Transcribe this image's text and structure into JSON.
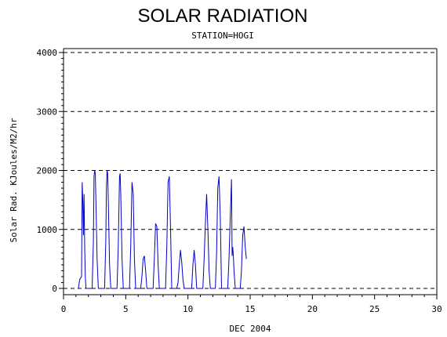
{
  "chart_data": {
    "type": "line",
    "title": "SOLAR RADIATION",
    "subtitle": "STATION=HOGI",
    "xlabel": "DEC 2004",
    "ylabel": "Solar Rad. KJoules/M2/hr",
    "xlim": [
      0,
      30
    ],
    "ylim": [
      0,
      4000
    ],
    "xticks": [
      0,
      5,
      10,
      15,
      20,
      25,
      30
    ],
    "yticks": [
      0,
      1000,
      2000,
      3000,
      4000
    ],
    "grid": "horizontal dashed",
    "series": [
      {
        "color": "#0000cc",
        "x": [
          1.2,
          1.3,
          1.45,
          1.5,
          1.55,
          1.6,
          1.65,
          1.7,
          1.75,
          1.8,
          2.3,
          2.4,
          2.45,
          2.5,
          2.55,
          2.6,
          2.7,
          2.8,
          3.3,
          3.4,
          3.45,
          3.5,
          3.55,
          3.6,
          3.7,
          3.8,
          4.3,
          4.4,
          4.5,
          4.55,
          4.6,
          4.7,
          4.8,
          5.3,
          5.4,
          5.5,
          5.6,
          5.7,
          5.8,
          6.2,
          6.3,
          6.4,
          6.5,
          6.6,
          6.7,
          7.2,
          7.3,
          7.4,
          7.5,
          7.6,
          7.7,
          8.2,
          8.3,
          8.4,
          8.5,
          8.6,
          8.7,
          9.1,
          9.2,
          9.3,
          9.4,
          9.5,
          9.6,
          9.7,
          10.3,
          10.4,
          10.5,
          10.6,
          10.7,
          11.2,
          11.3,
          11.4,
          11.5,
          11.6,
          11.7,
          11.8,
          12.2,
          12.3,
          12.4,
          12.5,
          12.6,
          12.7,
          13.2,
          13.3,
          13.4,
          13.5,
          13.55,
          13.6,
          13.65,
          13.7,
          13.8,
          14.2,
          14.3,
          14.4,
          14.5,
          14.6,
          14.7
        ],
        "y": [
          0,
          150,
          200,
          1800,
          1500,
          900,
          1600,
          700,
          200,
          0,
          0,
          800,
          1900,
          2000,
          1950,
          1500,
          500,
          0,
          0,
          800,
          1700,
          2000,
          1950,
          1500,
          400,
          0,
          0,
          700,
          1900,
          1950,
          1600,
          500,
          0,
          0,
          700,
          1800,
          1600,
          500,
          0,
          0,
          200,
          500,
          550,
          300,
          0,
          0,
          500,
          1100,
          1050,
          400,
          0,
          0,
          700,
          1800,
          1900,
          1000,
          0,
          0,
          100,
          400,
          650,
          450,
          150,
          0,
          0,
          400,
          650,
          400,
          0,
          0,
          500,
          1100,
          1600,
          1000,
          300,
          0,
          0,
          600,
          1700,
          1900,
          1200,
          0,
          0,
          500,
          1200,
          1850,
          550,
          700,
          550,
          300,
          0,
          0,
          300,
          900,
          1050,
          700,
          500
        ]
      }
    ]
  }
}
